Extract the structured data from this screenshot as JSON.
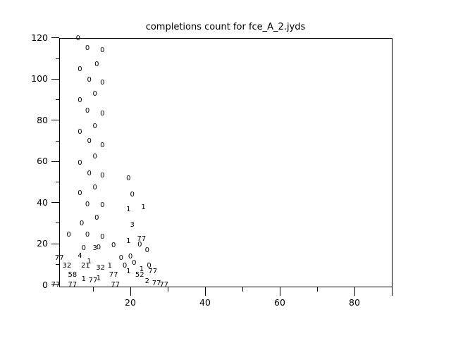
{
  "window": {
    "background": "#ffffff",
    "foreground": "#000000"
  },
  "chart_data": {
    "type": "scatter",
    "title": "completions count for fce_A_2.jyds",
    "xlabel": "",
    "ylabel": "",
    "xlim": [
      0,
      90
    ],
    "ylim": [
      0,
      120
    ],
    "x_tick_labels": [
      20,
      40,
      60,
      80
    ],
    "x_minor_ticks": [
      10,
      30,
      50,
      70,
      90
    ],
    "y_tick_labels": [
      0,
      20,
      40,
      60,
      80,
      100,
      120
    ],
    "y_minor_ticks": [
      10,
      30,
      50,
      70,
      90,
      110
    ],
    "grid": false,
    "legend": null,
    "marker_style": "numeric-text-labels",
    "series": [
      {
        "name": "0",
        "points": [
          [
            6,
            119.5
          ],
          [
            8.5,
            115
          ],
          [
            12.5,
            114
          ],
          [
            11,
            107
          ],
          [
            6.5,
            104.5
          ],
          [
            9,
            99.5
          ],
          [
            12.5,
            98
          ],
          [
            10.5,
            92.5
          ],
          [
            6.5,
            89.5
          ],
          [
            8.5,
            84.5
          ],
          [
            12.5,
            83
          ],
          [
            10.5,
            77
          ],
          [
            6.5,
            74
          ],
          [
            9,
            69.5
          ],
          [
            12.5,
            67.5
          ],
          [
            10.5,
            62
          ],
          [
            6.5,
            59
          ],
          [
            9,
            54
          ],
          [
            12.5,
            53
          ],
          [
            19.5,
            51.5
          ],
          [
            10.5,
            47
          ],
          [
            6.5,
            44.5
          ],
          [
            20.5,
            43.5
          ],
          [
            8.5,
            39
          ],
          [
            12.5,
            38.5
          ],
          [
            11,
            32.5
          ],
          [
            7,
            29.5
          ],
          [
            3.5,
            24
          ],
          [
            8.5,
            24
          ],
          [
            12.5,
            23
          ],
          [
            22.5,
            19.5
          ],
          [
            15.5,
            19
          ],
          [
            11.5,
            18
          ],
          [
            7.5,
            17.5
          ],
          [
            24.5,
            16.5
          ],
          [
            20,
            13.5
          ],
          [
            17.5,
            13
          ],
          [
            21,
            10.5
          ],
          [
            18.5,
            9
          ],
          [
            25,
            9
          ]
        ]
      },
      {
        "name": "1",
        "points": [
          [
            23.5,
            37.5
          ],
          [
            19.5,
            36.5
          ],
          [
            19.5,
            21
          ],
          [
            9,
            11
          ],
          [
            14.5,
            9
          ],
          [
            23,
            7.5
          ],
          [
            19.5,
            6.5
          ],
          [
            11.5,
            3
          ],
          [
            7.5,
            2.5
          ]
        ]
      },
      {
        "name": "2",
        "points": [
          [
            24.5,
            1.5
          ]
        ]
      },
      {
        "name": "3",
        "points": [
          [
            20.5,
            29
          ],
          [
            10.5,
            17.5
          ]
        ]
      },
      {
        "name": "4",
        "points": [
          [
            6.5,
            14
          ]
        ]
      },
      {
        "name": "21",
        "points": [
          [
            8,
            9
          ]
        ]
      },
      {
        "name": "32",
        "points": [
          [
            3,
            9
          ],
          [
            12,
            8
          ]
        ]
      },
      {
        "name": "52",
        "points": [
          [
            22.5,
            4.5
          ]
        ]
      },
      {
        "name": "58",
        "points": [
          [
            4.5,
            4.5
          ]
        ]
      },
      {
        "name": "77",
        "points": [
          [
            23,
            22
          ],
          [
            1,
            13
          ],
          [
            26,
            6.5
          ],
          [
            15.5,
            4.5
          ],
          [
            10,
            2
          ],
          [
            27,
            0.5
          ],
          [
            16,
            0
          ],
          [
            29,
            0
          ],
          [
            4.5,
            0
          ],
          [
            0,
            0
          ]
        ]
      }
    ]
  }
}
